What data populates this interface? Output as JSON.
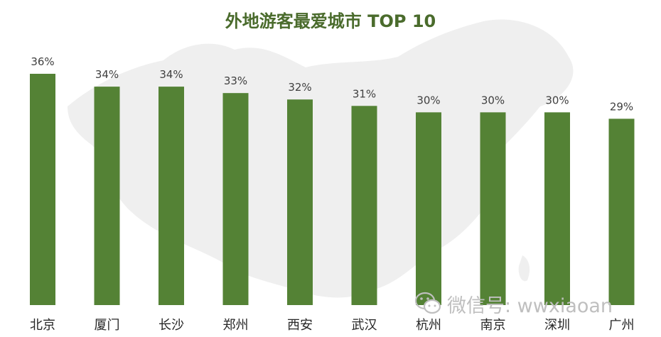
{
  "chart_data": {
    "type": "bar",
    "title": "外地游客最爱城市 TOP 10",
    "categories": [
      "北京",
      "厦门",
      "长沙",
      "郑州",
      "西安",
      "武汉",
      "杭州",
      "南京",
      "深圳",
      "广州"
    ],
    "values": [
      36,
      34,
      34,
      33,
      32,
      31,
      30,
      30,
      30,
      29
    ],
    "value_labels": [
      "36%",
      "34%",
      "34%",
      "33%",
      "32%",
      "31%",
      "30%",
      "30%",
      "30%",
      "29%"
    ],
    "unit": "%",
    "ylim": [
      0,
      36
    ],
    "grid": false,
    "legend": "none",
    "bar_color": "#548235"
  },
  "watermark": {
    "icon": "wechat-icon",
    "text": "微信号: wwxiaoan"
  },
  "colors": {
    "title": "#4a6b2c",
    "map": "#efefef"
  }
}
